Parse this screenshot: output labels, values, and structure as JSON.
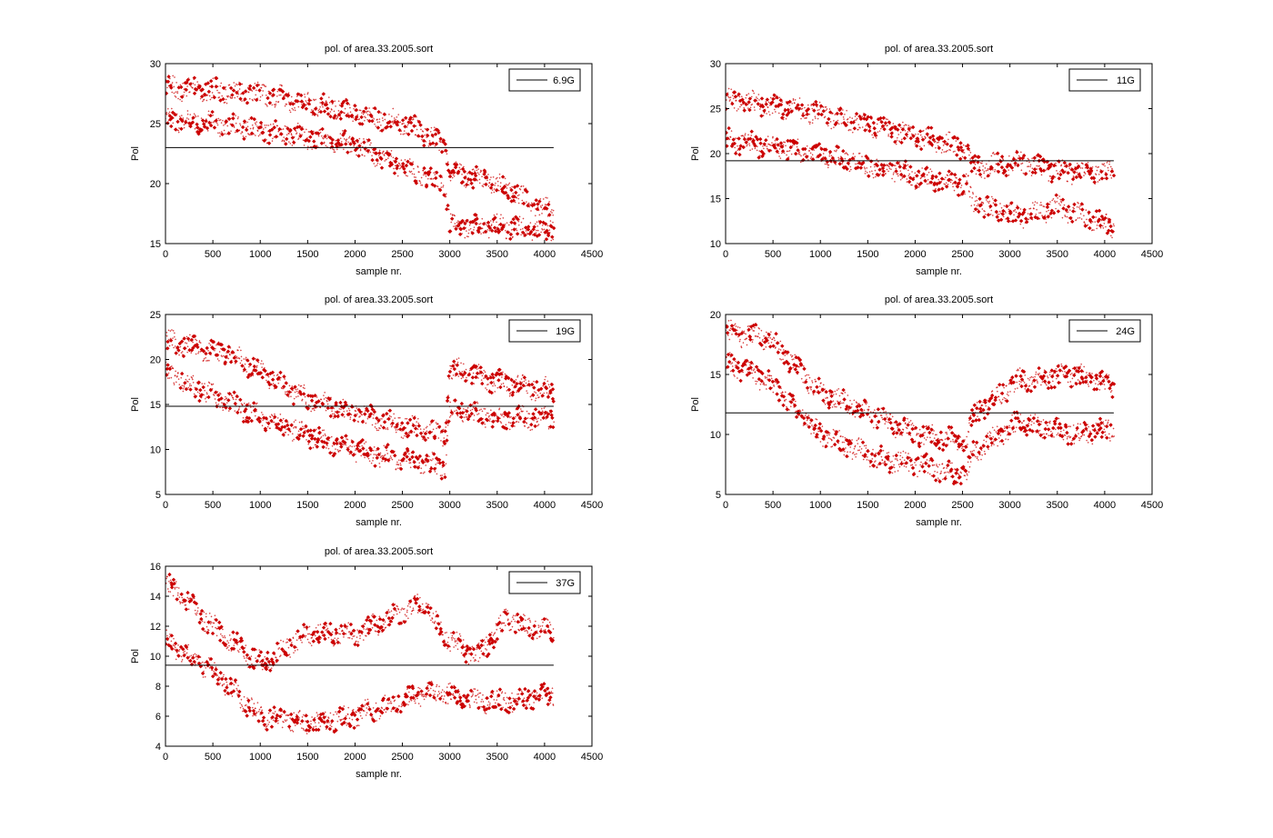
{
  "figure": {
    "background": "#ffffff",
    "marker_color": "#cc0000",
    "line_color": "#000000"
  },
  "chart_data": [
    {
      "type": "scatter",
      "title": "pol. of area.33.2005.sort",
      "xlabel": "sample nr.",
      "ylabel": "Pol",
      "xlim": [
        0,
        4500
      ],
      "ylim": [
        15,
        30
      ],
      "xticks": [
        "0",
        "500",
        "1000",
        "1500",
        "2000",
        "2500",
        "3000",
        "3500",
        "4000",
        "4500"
      ],
      "yticks": [
        "15",
        "20",
        "25",
        "30"
      ],
      "legend": "6.9G",
      "legend_position": "top-right",
      "mean_line": {
        "label": "6.9G",
        "y": 23,
        "x_range": [
          0,
          4096
        ]
      },
      "series": [
        {
          "type": "upper-band",
          "n": 4096,
          "x_range": [
            0,
            4096
          ],
          "profile": [
            [
              0,
              28
            ],
            [
              1000,
              27.5
            ],
            [
              2000,
              26
            ],
            [
              2600,
              24.8
            ],
            [
              2950,
              23.2
            ],
            [
              3000,
              21
            ],
            [
              3500,
              20
            ],
            [
              4096,
              17.5
            ]
          ]
        },
        {
          "type": "lower-band",
          "n": 4096,
          "x_range": [
            0,
            4096
          ],
          "profile": [
            [
              0,
              25.5
            ],
            [
              1000,
              24.5
            ],
            [
              2000,
              23.2
            ],
            [
              2600,
              21
            ],
            [
              2950,
              20
            ],
            [
              3000,
              16.5
            ],
            [
              3500,
              16.5
            ],
            [
              4096,
              16
            ]
          ]
        }
      ]
    },
    {
      "type": "scatter",
      "title": "pol. of area.33.2005.sort",
      "xlabel": "sample nr.",
      "ylabel": "Pol",
      "xlim": [
        0,
        4500
      ],
      "ylim": [
        10,
        30
      ],
      "xticks": [
        "0",
        "500",
        "1000",
        "1500",
        "2000",
        "2500",
        "3000",
        "3500",
        "4000",
        "4500"
      ],
      "yticks": [
        "10",
        "15",
        "20",
        "25",
        "30"
      ],
      "legend": "11G",
      "legend_position": "top-right",
      "mean_line": {
        "label": "11G",
        "y": 19.2,
        "x_range": [
          0,
          4096
        ]
      },
      "series": [
        {
          "type": "upper-band",
          "n": 4096,
          "x_range": [
            0,
            4096
          ],
          "profile": [
            [
              0,
              26
            ],
            [
              1000,
              24.5
            ],
            [
              2000,
              22
            ],
            [
              2560,
              20.5
            ],
            [
              2600,
              18.5
            ],
            [
              3100,
              19
            ],
            [
              3500,
              18
            ],
            [
              4096,
              18
            ]
          ]
        },
        {
          "type": "lower-band",
          "n": 4096,
          "x_range": [
            0,
            4096
          ],
          "profile": [
            [
              0,
              21.5
            ],
            [
              1000,
              20
            ],
            [
              2000,
              17.5
            ],
            [
              2560,
              16.5
            ],
            [
              2600,
              14.5
            ],
            [
              3100,
              13
            ],
            [
              3500,
              14
            ],
            [
              4096,
              12
            ]
          ]
        }
      ]
    },
    {
      "type": "scatter",
      "title": "pol. of area.33.2005.sort",
      "xlabel": "sample nr.",
      "ylabel": "Pol",
      "xlim": [
        0,
        4500
      ],
      "ylim": [
        5,
        25
      ],
      "xticks": [
        "0",
        "500",
        "1000",
        "1500",
        "2000",
        "2500",
        "3000",
        "3500",
        "4000",
        "4500"
      ],
      "yticks": [
        "5",
        "10",
        "15",
        "20",
        "25"
      ],
      "legend": "19G",
      "legend_position": "top-right",
      "mean_line": {
        "label": "19G",
        "y": 14.8,
        "x_range": [
          0,
          4096
        ]
      },
      "series": [
        {
          "type": "upper-band",
          "n": 4096,
          "x_range": [
            0,
            4096
          ],
          "profile": [
            [
              0,
              22
            ],
            [
              700,
              20.5
            ],
            [
              1500,
              15.5
            ],
            [
              2200,
              13.5
            ],
            [
              2950,
              11.5
            ],
            [
              3000,
              19
            ],
            [
              3500,
              17.5
            ],
            [
              4096,
              16.5
            ]
          ]
        },
        {
          "type": "lower-band",
          "n": 4096,
          "x_range": [
            0,
            4096
          ],
          "profile": [
            [
              0,
              18.5
            ],
            [
              700,
              15
            ],
            [
              1500,
              11.5
            ],
            [
              2200,
              9.5
            ],
            [
              2950,
              8
            ],
            [
              3000,
              14.5
            ],
            [
              3500,
              13.5
            ],
            [
              4096,
              13.5
            ]
          ]
        }
      ]
    },
    {
      "type": "scatter",
      "title": "pol. of area.33.2005.sort",
      "xlabel": "sample nr.",
      "ylabel": "Pol",
      "xlim": [
        0,
        4500
      ],
      "ylim": [
        5,
        20
      ],
      "xticks": [
        "0",
        "500",
        "1000",
        "1500",
        "2000",
        "2500",
        "3000",
        "3500",
        "4000",
        "4500"
      ],
      "yticks": [
        "5",
        "10",
        "15",
        "20"
      ],
      "legend": "24G",
      "legend_position": "top-right",
      "mean_line": {
        "label": "24G",
        "y": 11.8,
        "x_range": [
          0,
          4096
        ]
      },
      "series": [
        {
          "type": "upper-band",
          "n": 4096,
          "x_range": [
            0,
            4096
          ],
          "profile": [
            [
              0,
              18.5
            ],
            [
              450,
              18
            ],
            [
              1000,
              13.5
            ],
            [
              1600,
              11.5
            ],
            [
              2000,
              10
            ],
            [
              2550,
              9.5
            ],
            [
              2600,
              11.5
            ],
            [
              3100,
              14.5
            ],
            [
              3700,
              15
            ],
            [
              4096,
              14
            ]
          ]
        },
        {
          "type": "lower-band",
          "n": 4096,
          "x_range": [
            0,
            4096
          ],
          "profile": [
            [
              0,
              16
            ],
            [
              450,
              14.5
            ],
            [
              1000,
              10
            ],
            [
              1600,
              8
            ],
            [
              2000,
              7.5
            ],
            [
              2550,
              6.5
            ],
            [
              2600,
              8.5
            ],
            [
              3100,
              11
            ],
            [
              3700,
              10
            ],
            [
              4096,
              10.5
            ]
          ]
        }
      ]
    },
    {
      "type": "scatter",
      "title": "pol. of area.33.2005.sort",
      "xlabel": "sample nr.",
      "ylabel": "Pol",
      "xlim": [
        0,
        4500
      ],
      "ylim": [
        4,
        16
      ],
      "xticks": [
        "0",
        "500",
        "1000",
        "1500",
        "2000",
        "2500",
        "3000",
        "3500",
        "4000",
        "4500"
      ],
      "yticks": [
        "4",
        "6",
        "8",
        "10",
        "12",
        "14",
        "16"
      ],
      "legend": "37G",
      "legend_position": "top-right",
      "mean_line": {
        "label": "37G",
        "y": 9.4,
        "x_range": [
          0,
          4096
        ]
      },
      "series": [
        {
          "type": "upper-band",
          "n": 4096,
          "x_range": [
            0,
            4096
          ],
          "profile": [
            [
              0,
              15
            ],
            [
              500,
              12
            ],
            [
              1000,
              9.5
            ],
            [
              1500,
              11.5
            ],
            [
              2000,
              11.5
            ],
            [
              2700,
              13.5
            ],
            [
              3000,
              11
            ],
            [
              3300,
              10
            ],
            [
              3600,
              12.5
            ],
            [
              4096,
              11.5
            ]
          ]
        },
        {
          "type": "lower-band",
          "n": 4096,
          "x_range": [
            0,
            4096
          ],
          "profile": [
            [
              0,
              11
            ],
            [
              500,
              9
            ],
            [
              1000,
              6
            ],
            [
              1500,
              5.5
            ],
            [
              2000,
              6
            ],
            [
              2700,
              7.5
            ],
            [
              3000,
              7.5
            ],
            [
              3300,
              7
            ],
            [
              3600,
              7
            ],
            [
              4096,
              7.5
            ]
          ]
        }
      ]
    }
  ]
}
